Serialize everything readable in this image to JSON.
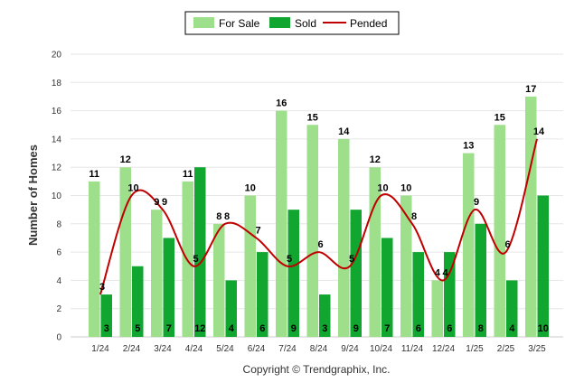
{
  "chart_data": {
    "type": "bar",
    "categories": [
      "1/24",
      "2/24",
      "3/24",
      "4/24",
      "5/24",
      "6/24",
      "7/24",
      "8/24",
      "9/24",
      "10/24",
      "11/24",
      "12/24",
      "1/25",
      "2/25",
      "3/25"
    ],
    "series": [
      {
        "name": "For Sale",
        "type": "bar",
        "color": "#9ddf8b",
        "values": [
          11,
          12,
          9,
          11,
          8,
          10,
          16,
          15,
          14,
          12,
          10,
          4,
          13,
          15,
          17
        ]
      },
      {
        "name": "Sold",
        "type": "bar",
        "color": "#10a62f",
        "values": [
          3,
          5,
          7,
          12,
          4,
          6,
          9,
          3,
          9,
          7,
          6,
          6,
          8,
          4,
          10
        ]
      },
      {
        "name": "Pended",
        "type": "line",
        "color": "#c00000",
        "values": [
          3,
          10,
          9,
          5,
          8,
          7,
          5,
          6,
          5,
          10,
          8,
          4,
          9,
          6,
          14
        ]
      }
    ],
    "xlabel": "",
    "ylabel": "Number of Homes",
    "ylim": [
      0,
      20
    ],
    "yticks": [
      0,
      2,
      4,
      6,
      8,
      10,
      12,
      14,
      16,
      18,
      20
    ],
    "grid": true,
    "legend": "top-center"
  },
  "footer": {
    "copyright": "Copyright © Trendgraphix, Inc."
  }
}
